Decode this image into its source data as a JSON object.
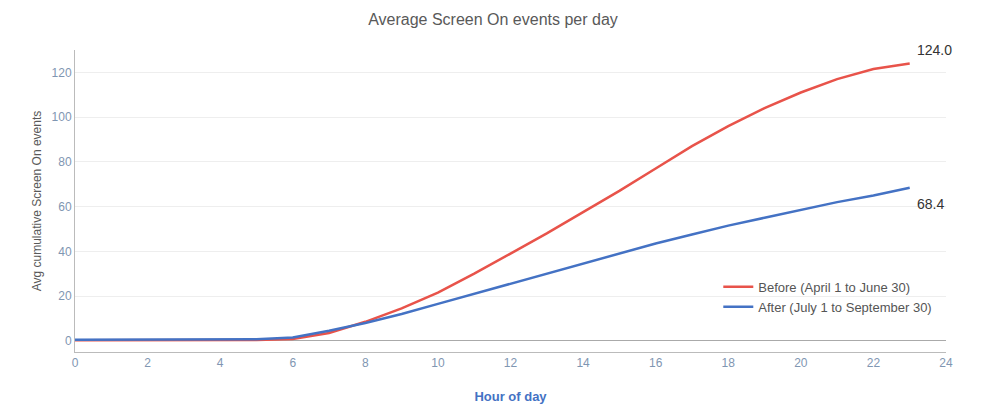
{
  "chart_data": {
    "type": "line",
    "title": "Average Screen On events per day",
    "xlabel": "Hour of day",
    "ylabel": "Avg cumulative Screen On events",
    "x": [
      0,
      1,
      2,
      3,
      4,
      5,
      6,
      7,
      8,
      9,
      10,
      11,
      12,
      13,
      14,
      15,
      16,
      17,
      18,
      19,
      20,
      21,
      22,
      23
    ],
    "series": [
      {
        "name": "Before (April 1 to June 30)",
        "color": "#E8534A",
        "values": [
          0.3,
          0.3,
          0.3,
          0.3,
          0.3,
          0.4,
          0.8,
          3.5,
          8.5,
          14.5,
          21.5,
          30.0,
          39.0,
          48.0,
          57.5,
          67.0,
          77.0,
          87.0,
          96.0,
          104.0,
          111.0,
          117.0,
          121.5,
          124.0
        ]
      },
      {
        "name": "After (July 1 to September 30)",
        "color": "#4472C4",
        "values": [
          0.5,
          0.6,
          0.7,
          0.7,
          0.7,
          0.7,
          1.5,
          4.5,
          8.0,
          12.0,
          16.5,
          21.0,
          25.5,
          30.0,
          34.5,
          39.0,
          43.5,
          47.5,
          51.5,
          55.0,
          58.5,
          62.0,
          65.0,
          68.4
        ]
      }
    ],
    "annotations": [
      {
        "text": "124.0",
        "x": 23,
        "y": 124.0
      },
      {
        "text": "68.4",
        "x": 23,
        "y": 68.4
      }
    ],
    "xlim": [
      0,
      24
    ],
    "ylim": [
      -5,
      130
    ],
    "xticks": [
      0,
      2,
      4,
      6,
      8,
      10,
      12,
      14,
      16,
      18,
      20,
      22,
      24
    ],
    "yticks": [
      0,
      20,
      40,
      60,
      80,
      100,
      120
    ],
    "grid": true,
    "legend": "lower right"
  }
}
